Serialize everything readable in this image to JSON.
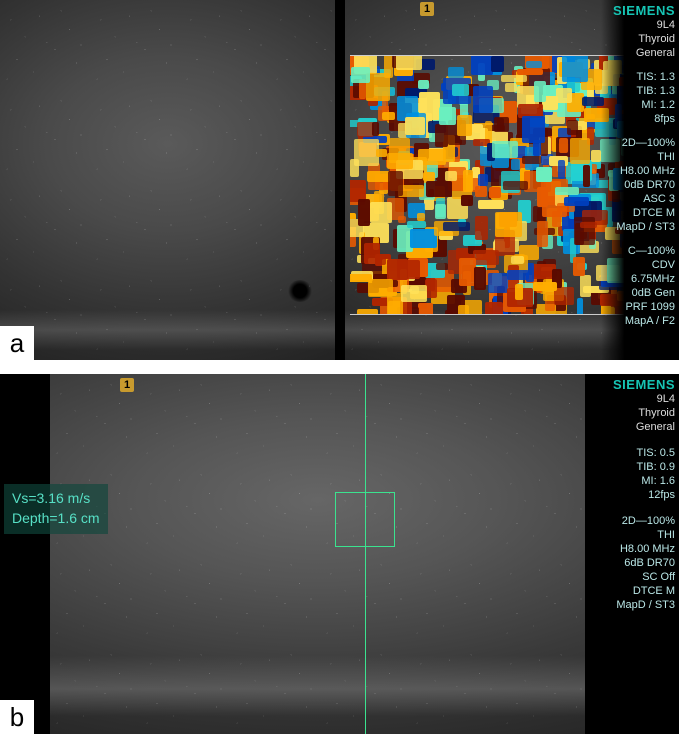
{
  "panel_a": {
    "badge": "a",
    "marker_right": "1",
    "info": {
      "brand": "SIEMENS",
      "probe": "9L4",
      "preset": "Thyroid",
      "mode": "General",
      "tis": "TIS: 1.3",
      "tib": "TIB: 1.3",
      "mi": "MI: 1.2",
      "fps": "8fps",
      "zoom": "2D—100%",
      "thi": "THI",
      "freq": "H8.00 MHz",
      "dr": "0dB DR70",
      "asc": "ASC 3",
      "dtce": "DTCE M",
      "map1": "MapD / ST3",
      "c": "C—100%",
      "cdv": "CDV",
      "cfreq": "6.75MHz",
      "gain": "0dB Gen",
      "prf": "PRF 1099",
      "map2": "MapA / F2"
    },
    "doppler": {
      "colors_warm": [
        "#5a0a00",
        "#b02500",
        "#e85a00",
        "#ffad00",
        "#ffe25a"
      ],
      "colors_cool": [
        "#001a6a",
        "#0040c0",
        "#0090e0",
        "#22d0d0",
        "#6af0c0"
      ],
      "frame_border": "#d0d0d0"
    }
  },
  "panel_b": {
    "badge": "b",
    "marker": "1",
    "measure": {
      "vs": "Vs=3.16 m/s",
      "depth": "Depth=1.6 cm"
    },
    "roi_color": "#3be38f",
    "info": {
      "brand": "SIEMENS",
      "probe": "9L4",
      "preset": "Thyroid",
      "mode": "General",
      "tis": "TIS: 0.5",
      "tib": "TIB: 0.9",
      "mi": "MI: 1.6",
      "fps": "12fps",
      "zoom": "2D—100%",
      "thi": "THI",
      "freq": "H8.00 MHz",
      "dr": "6dB DR70",
      "sc": "SC Off",
      "dtce": "DTCE M",
      "map": "MapD / ST3"
    }
  }
}
